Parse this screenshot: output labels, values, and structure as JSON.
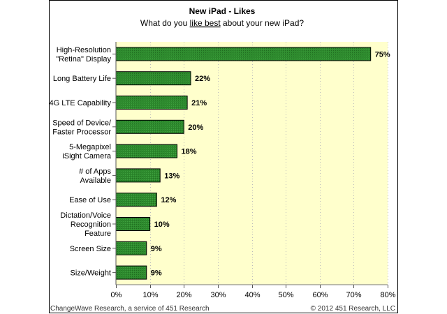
{
  "chart_data": {
    "type": "bar",
    "orientation": "horizontal",
    "title": "New iPad - Likes",
    "subtitle_parts": [
      "What do you ",
      "like best",
      " about your new iPad?"
    ],
    "categories": [
      [
        "High-Resolution",
        "\"Retina\" Display"
      ],
      [
        "Long Battery Life"
      ],
      [
        "4G LTE Capability"
      ],
      [
        "Speed of Device/",
        "Faster Processor"
      ],
      [
        "5-Megapixel",
        "iSight Camera"
      ],
      [
        "# of Apps",
        "Available"
      ],
      [
        "Ease of Use"
      ],
      [
        "Dictation/Voice",
        "Recognition",
        "Feature"
      ],
      [
        "Screen Size"
      ],
      [
        "Size/Weight"
      ]
    ],
    "values": [
      75,
      22,
      21,
      20,
      18,
      13,
      12,
      10,
      9,
      9
    ],
    "value_labels": [
      "75%",
      "22%",
      "21%",
      "20%",
      "18%",
      "13%",
      "12%",
      "10%",
      "9%",
      "9%"
    ],
    "xlim": [
      0,
      80
    ],
    "xticks": [
      "0%",
      "10%",
      "20%",
      "30%",
      "40%",
      "50%",
      "60%",
      "70%",
      "80%"
    ],
    "grid": true,
    "bar_color": "#2e8b2e",
    "plot_bg": "#ffffcc"
  },
  "footer": {
    "left": "ChangeWave Research, a service of 451 Research",
    "right": "© 2012 451 Research, LLC"
  }
}
